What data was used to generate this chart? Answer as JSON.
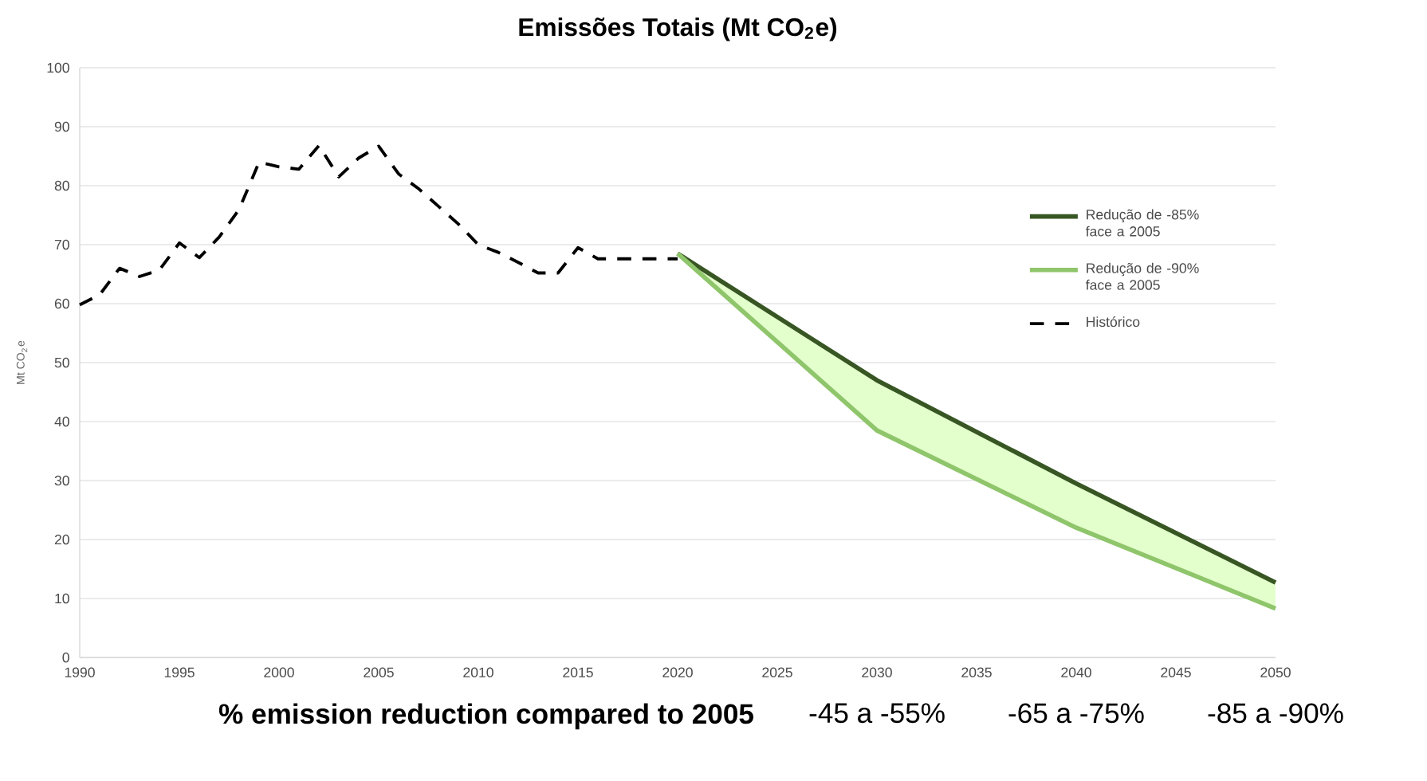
{
  "chart_data": {
    "type": "line",
    "title": "Emissões Totais (Mt CO$_{2}$e)",
    "ylabel": "Mt CO$_{2}$e",
    "xlim": [
      1990,
      2050
    ],
    "xticks": [
      1990,
      1995,
      2000,
      2005,
      2010,
      2015,
      2020,
      2025,
      2030,
      2035,
      2040,
      2045,
      2050
    ],
    "ylim": [
      0,
      100
    ],
    "yticks": [
      0,
      10,
      20,
      30,
      40,
      50,
      60,
      70,
      80,
      90,
      100
    ],
    "grid": "y",
    "legend": "right",
    "marker": "none",
    "series": [
      {
        "name": "Redução de -85% face a 2005",
        "color": "#375623",
        "line_style": "solid",
        "x": [
          2020,
          2030,
          2040,
          2050
        ],
        "values": [
          68.5,
          47,
          29.5,
          12.7
        ]
      },
      {
        "name": "Redução de -90% face a 2005",
        "color": "#8fc56b",
        "line_style": "solid",
        "x": [
          2020,
          2030,
          2040,
          2050
        ],
        "values": [
          68.5,
          38.5,
          22,
          8.3
        ]
      },
      {
        "name": "Histórico",
        "color": "#000000",
        "line_style": "dashed",
        "x": [
          1990,
          1991,
          1992,
          1993,
          1994,
          1995,
          1996,
          1997,
          1998,
          1999,
          2000,
          2001,
          2002,
          2003,
          2004,
          2005,
          2006,
          2007,
          2008,
          2009,
          2010,
          2011,
          2012,
          2013,
          2014,
          2015,
          2016,
          2017,
          2018,
          2019,
          2020
        ],
        "values": [
          59.8,
          61.5,
          66,
          64.6,
          65.7,
          70.3,
          67.8,
          71.3,
          76,
          84,
          83.2,
          82.8,
          86.8,
          81.5,
          84.7,
          86.7,
          82,
          79.5,
          76.5,
          73.5,
          70,
          68.7,
          67,
          65.2,
          65.2,
          69.5,
          67.6,
          67.6,
          67.6,
          67.6,
          67.6
        ]
      }
    ],
    "annotations": [
      "% emission reduction compared to 2005",
      "-45 a -55%",
      "-65 a -75%",
      "-85 a -90%"
    ]
  }
}
